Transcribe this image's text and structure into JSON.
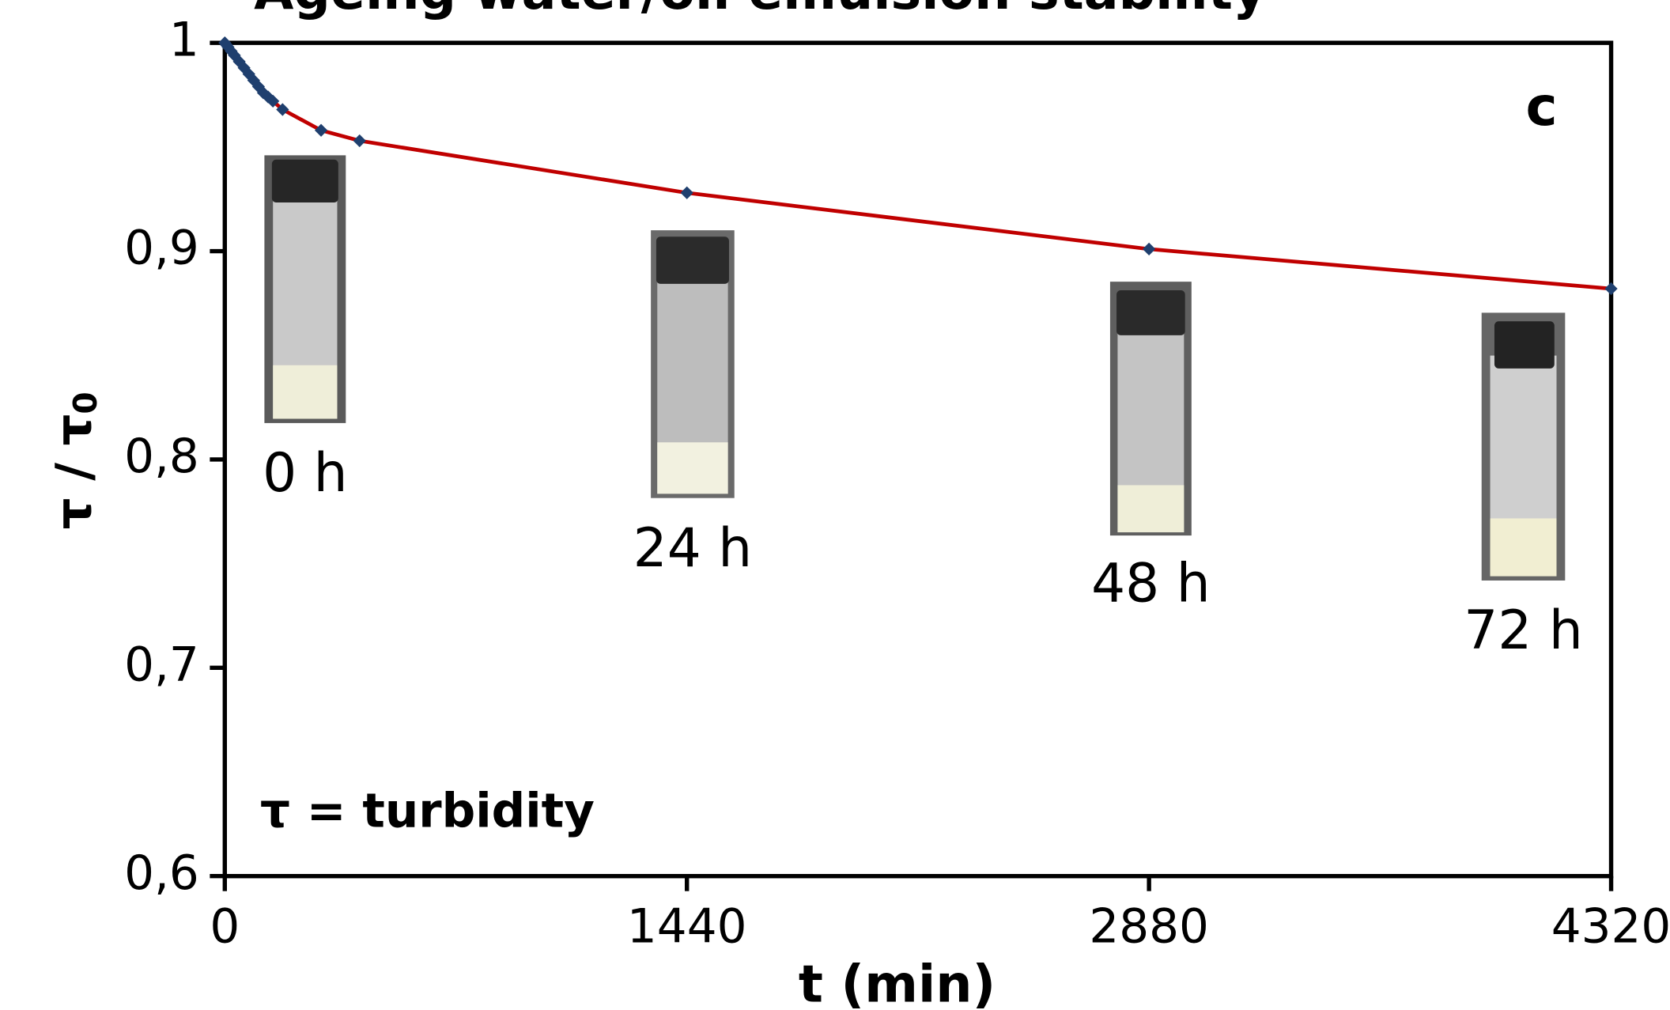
{
  "chart_data": {
    "type": "line",
    "title": "Ageing water/oil emulsion stability",
    "xlabel": "t (min)",
    "ylabel": "τ / τ",
    "ylabel_subscript": "0",
    "panel_label": "c",
    "note": "τ = turbidity",
    "annotations": [
      "0 h",
      "24 h",
      "48 h",
      "72 h"
    ],
    "xlim": [
      0,
      4320
    ],
    "xticks": [
      0,
      1440,
      2880,
      4320
    ],
    "ylim": [
      0.6,
      1
    ],
    "yticks": [
      {
        "value": 0.6,
        "label": "0,6"
      },
      {
        "value": 0.7,
        "label": "0,7"
      },
      {
        "value": 0.8,
        "label": "0,8"
      },
      {
        "value": 0.9,
        "label": "0,9"
      },
      1
    ],
    "series": [
      {
        "color": "#c00000",
        "marker_color": "#1f3f6e",
        "x": [
          0,
          5,
          10,
          20,
          30,
          45,
          60,
          75,
          90,
          105,
          120,
          135,
          150,
          180,
          300,
          420,
          1440,
          2880,
          4320
        ],
        "values": [
          1,
          0.999,
          0.998,
          0.996,
          0.994,
          0.991,
          0.988,
          0.985,
          0.982,
          0.979,
          0.976,
          0.974,
          0.972,
          0.968,
          0.958,
          0.953,
          0.928,
          0.901,
          0.882
        ]
      }
    ]
  }
}
